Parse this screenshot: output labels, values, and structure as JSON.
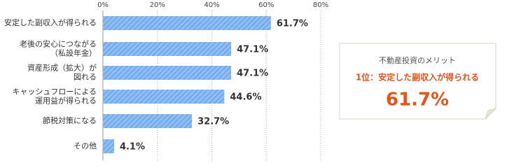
{
  "chart_data": {
    "type": "barh",
    "categories": [
      "安定した副収入が得られる",
      "老後の安心につながる\n（私設年金）",
      "資産形成（拡大）が\n図れる",
      "キャッシュフローによる\n運用益が得られる",
      "節税対策になる",
      "その他"
    ],
    "values": [
      61.7,
      47.1,
      47.1,
      44.6,
      32.7,
      4.1
    ],
    "value_labels": [
      "61.7%",
      "47.1%",
      "47.1%",
      "44.6%",
      "32.7%",
      "4.1%"
    ],
    "color": "#7fb2ee",
    "xlim": [
      0,
      80
    ],
    "xticks": [
      {
        "value": 0,
        "label": "0%"
      },
      {
        "value": 20,
        "label": "20%"
      },
      {
        "value": 40,
        "label": "40%"
      },
      {
        "value": 60,
        "label": "60%"
      },
      {
        "value": 80,
        "label": "80%"
      }
    ],
    "grid": true,
    "callout": {
      "heading": "不動産投資のメリット",
      "rank_text": "1位：安定した副収入が得られる",
      "highlight": "61.7%"
    }
  }
}
